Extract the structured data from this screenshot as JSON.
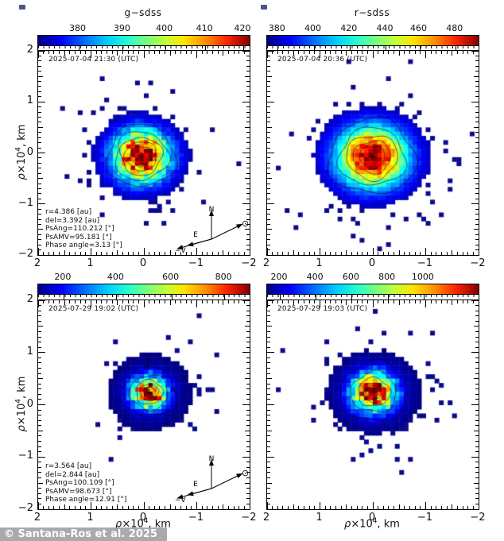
{
  "figure": {
    "credit": "© Santana-Ros et al. 2025",
    "axis_title": {
      "rho": "ρ",
      "x10": "×10",
      "sup": "4",
      "suffix": ", km"
    },
    "colormap": "jet",
    "colors": {
      "plot_border": "#000000",
      "background": "#ffffff",
      "watermark_bg": "#9e9e9e",
      "watermark_text": "#ffffff",
      "scatter_pixel": "#0a0a8c"
    }
  },
  "compass": {
    "north": "N",
    "east": "E",
    "neg_v": "−V",
    "sun": "⊙"
  },
  "chart_data": [
    {
      "type": "heatmap",
      "title": "g−sdss",
      "timestamp": "2025-07-04 21:30 (UTC)",
      "colorbar": {
        "ticks": [
          "380",
          "390",
          "400",
          "410",
          "420"
        ],
        "fracs": [
          0.19,
          0.4,
          0.6,
          0.79,
          0.97
        ]
      },
      "x_tick_labels": [
        "2",
        "1",
        "0",
        "−1",
        "−2"
      ],
      "y_tick_labels": [
        "2",
        "1",
        "0",
        "−1",
        "−2"
      ],
      "x_range": [
        2,
        -2
      ],
      "y_range": [
        -2,
        2
      ],
      "xlabel": "ρ×10^4, km",
      "ylabel": "ρ×10^4, km",
      "annotations": [
        "r=4.386 [au]",
        "del=3.392 [au]",
        "PsAng=110.212 [°]",
        "PsAMV=95.181 [°]",
        "Phase angle=3.13 [°]"
      ],
      "has_compass": true,
      "blob": {
        "cx": 0.487,
        "cy": 0.515,
        "sx": 25,
        "sy": 23,
        "gamma": 1.0,
        "noise": 0.5,
        "scatter": 0.33,
        "t": 0.05,
        "seed": 9,
        "contours": [
          13,
          19,
          25,
          32,
          41
        ]
      }
    },
    {
      "type": "heatmap",
      "title": "r−sdss",
      "timestamp": "2025-07-04 20:36 (UTC)",
      "colorbar": {
        "ticks": [
          "380",
          "400",
          "420",
          "440",
          "460",
          "480"
        ],
        "fracs": [
          0.05,
          0.22,
          0.39,
          0.56,
          0.72,
          0.89
        ]
      },
      "x_tick_labels": [
        "2",
        "1",
        "0",
        "−1",
        "−2"
      ],
      "y_tick_labels": [
        "2",
        "1",
        "0",
        "−1",
        "−2"
      ],
      "x_range": [
        2,
        -2
      ],
      "y_range": [
        -2,
        2
      ],
      "xlabel": "ρ×10^4, km",
      "ylabel": "ρ×10^4, km",
      "annotations": null,
      "has_compass": false,
      "blob": {
        "cx": 0.497,
        "cy": 0.52,
        "sx": 30,
        "sy": 26,
        "gamma": 0.95,
        "noise": 0.25,
        "scatter": 0.3,
        "t": 0.05,
        "seed": 5,
        "contours": [
          15,
          22,
          30,
          39,
          51
        ]
      }
    },
    {
      "type": "heatmap",
      "title": "",
      "timestamp": "2025-07-29 19:02 (UTC)",
      "colorbar": {
        "ticks": [
          "200",
          "400",
          "600",
          "800"
        ],
        "fracs": [
          0.12,
          0.37,
          0.63,
          0.88
        ]
      },
      "x_tick_labels": [
        "2",
        "1",
        "0",
        "−1",
        "−2"
      ],
      "y_tick_labels": [
        "2",
        "1",
        "0",
        "−1",
        "−2"
      ],
      "x_range": [
        2,
        -2
      ],
      "y_range": [
        -2,
        2
      ],
      "xlabel": "ρ×10^4, km",
      "ylabel": "ρ×10^4, km",
      "annotations": [
        "r=3.564 [au]",
        "del=2.844 [au]",
        "PsAng=100.109 [°]",
        "PsAMV=98.673 [°]",
        "Phase angle=12.91 [°]"
      ],
      "has_compass": true,
      "blob": {
        "cx": 0.525,
        "cy": 0.44,
        "sx": 23,
        "sy": 21,
        "gamma": 2.3,
        "noise": 0.35,
        "scatter": 0.22,
        "t": 0.07,
        "seed": 13,
        "contours": [
          7,
          11,
          16,
          23,
          33
        ],
        "mark": true
      }
    },
    {
      "type": "heatmap",
      "title": "",
      "timestamp": "2025-07-29 19:03 (UTC)",
      "colorbar": {
        "ticks": [
          "200",
          "400",
          "600",
          "800",
          "1000"
        ],
        "fracs": [
          0.06,
          0.23,
          0.4,
          0.57,
          0.74
        ]
      },
      "x_tick_labels": [
        "2",
        "1",
        "0",
        "−1",
        "−2"
      ],
      "y_tick_labels": [
        "2",
        "1",
        "0",
        "−1",
        "−2"
      ],
      "x_range": [
        2,
        -2
      ],
      "y_range": [
        -2,
        2
      ],
      "xlabel": "ρ×10^4, km",
      "ylabel": "ρ×10^4, km",
      "annotations": null,
      "has_compass": false,
      "blob": {
        "cx": 0.505,
        "cy": 0.44,
        "sx": 26,
        "sy": 23,
        "gamma": 1.9,
        "noise": 0.35,
        "scatter": 0.26,
        "t": 0.07,
        "seed": 29,
        "contours": [
          9,
          13,
          19,
          27,
          40
        ]
      }
    }
  ]
}
